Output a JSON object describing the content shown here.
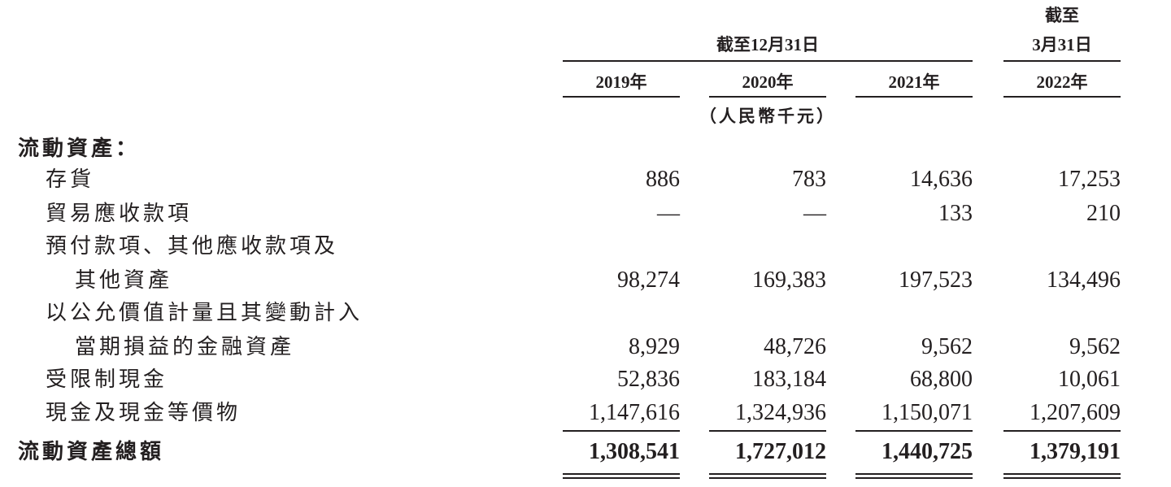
{
  "header": {
    "group_label": "截至12月31日",
    "last_col_label_line1": "截至",
    "last_col_label_line2": "3月31日",
    "years": [
      "2019年",
      "2020年",
      "2021年",
      "2022年"
    ],
    "unit": "（人民幣千元）"
  },
  "section_title": "流動資產：",
  "rows": [
    {
      "label": "存貨",
      "values": [
        "886",
        "783",
        "14,636",
        "17,253"
      ]
    },
    {
      "label": "貿易應收款項",
      "values": [
        "—",
        "—",
        "133",
        "210"
      ]
    },
    {
      "label_line1": "預付款項、其他應收款項及",
      "label": "其他資產",
      "values": [
        "98,274",
        "169,383",
        "197,523",
        "134,496"
      ]
    },
    {
      "label_line1": "以公允價值計量且其變動計入",
      "label": "當期損益的金融資產",
      "values": [
        "8,929",
        "48,726",
        "9,562",
        "9,562"
      ]
    },
    {
      "label": "受限制現金",
      "values": [
        "52,836",
        "183,184",
        "68,800",
        "10,061"
      ]
    },
    {
      "label": "現金及現金等價物",
      "values": [
        "1,147,616",
        "1,324,936",
        "1,150,071",
        "1,207,609"
      ]
    }
  ],
  "total": {
    "label": "流動資產總額",
    "values": [
      "1,308,541",
      "1,727,012",
      "1,440,725",
      "1,379,191"
    ]
  }
}
